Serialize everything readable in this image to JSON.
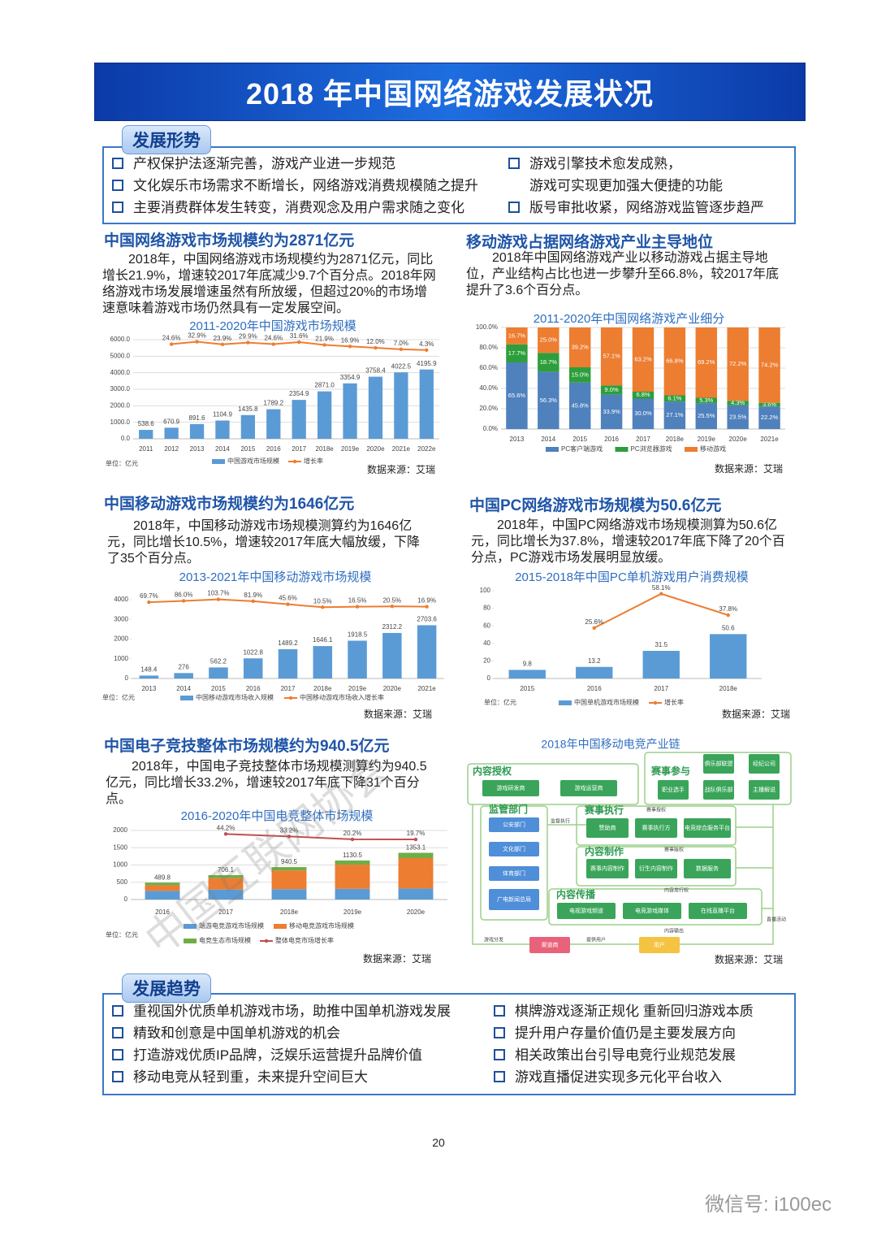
{
  "header": {
    "title": "2018 年中国网络游戏发展状况"
  },
  "situation": {
    "title": "发展形势",
    "left": [
      "产权保护法逐渐完善，游戏产业进一步规范",
      "文化娱乐市场需求不断增长，网络游戏消费规模随之提升",
      "主要消费群体发生转变，消费观念及用户需求随之变化"
    ],
    "right": [
      [
        "游戏引擎技术愈发成熟，",
        "游戏可实现更加强大便捷的功能"
      ],
      [
        "版号审批收紧，网络游戏监管逐步趋严"
      ]
    ]
  },
  "panels": [
    {
      "title": "中国网络游戏市场规模约为2871亿元",
      "text": "2018年，中国网络游戏市场规模约为2871亿元，同比增长21.9%，增速较2017年底减少9.7个百分点。2018年网络游戏市场发展增速虽然有所放缓，但超过20%的市场增速意味着游戏市场仍然具有一定发展空间。"
    },
    {
      "title": "移动游戏占据网络游戏产业主导地位",
      "text": "2018年中国网络游戏产业以移动游戏占据主导地位，产业结构占比也进一步攀升至66.8%，较2017年底提升了3.6个百分点。"
    },
    {
      "title": "中国移动游戏市场规模约为1646亿元",
      "text": "2018年，中国移动游戏市场规模测算约为1646亿元，同比增长10.5%，增速较2017年底大幅放缓，下降了35个百分点。"
    },
    {
      "title": "中国PC网络游戏市场规模为50.6亿元",
      "text": "2018年，中国PC网络游戏市场规模测算为50.6亿元，同比增长为37.8%，增速较2017年底下降了20个百分点，PC游戏市场发展明显放缓。"
    },
    {
      "title": "中国电子竞技整体市场规模约为940.5亿元",
      "text": "2018年，中国电子竞技整体市场规模测算约为940.5亿元，同比增长33.2%，增速较2017年底下降31个百分点。"
    }
  ],
  "chart_data": [
    {
      "type": "bar",
      "title": "2011-2020年中国游戏市场规模",
      "unit_label": "单位：亿元",
      "source": "数据来源：艾瑞",
      "categories": [
        "2011",
        "2012",
        "2013",
        "2014",
        "2015",
        "2016",
        "2017",
        "2018e",
        "2019e",
        "2020e",
        "2021e",
        "2022e"
      ],
      "ylim": [
        0,
        6000
      ],
      "yticks": [
        {
          "value": 0,
          "label": "0.0"
        },
        {
          "value": 1000,
          "label": "1000.0"
        },
        {
          "value": 2000,
          "label": "2000.0"
        },
        {
          "value": 3000,
          "label": "3000.0"
        },
        {
          "value": 4000,
          "label": "4000.0"
        },
        {
          "value": 5000,
          "label": "5000.0"
        },
        {
          "value": 6000,
          "label": "6000.0"
        }
      ],
      "y2lim": [
        -300,
        40
      ],
      "grid": true,
      "series": [
        {
          "name": "中国游戏市场规模",
          "type": "bar",
          "color": "#5b9bd5",
          "values": [
            538.6,
            670.9,
            891.6,
            1104.9,
            1435.8,
            1789.2,
            2354.9,
            2871,
            3354.9,
            3758.4,
            4022.5,
            4195.9
          ],
          "value_labels": [
            "538.6",
            "670.9",
            "891.6",
            "1104.9",
            "1435.8",
            "1789.2",
            "2354.9",
            "2871.0",
            "3354.9",
            "3758.4",
            "4022.5",
            "4195.9"
          ]
        },
        {
          "name": "增长率",
          "type": "line",
          "axis": "y2",
          "color": "#ed7d31",
          "values": [
            null,
            24.6,
            32.9,
            23.9,
            29.9,
            24.6,
            31.6,
            21.9,
            16.9,
            12.0,
            7.0,
            4.3
          ],
          "value_labels": [
            null,
            "24.6%",
            "32.9%",
            "23.9%",
            "29.9%",
            "24.6%",
            "31.6%",
            "21.9%",
            "16.9%",
            "12.0%",
            "7.0%",
            "4.3%"
          ]
        }
      ]
    },
    {
      "type": "bar",
      "title": "2011-2020年中国网络游戏产业细分",
      "source": "数据来源：艾瑞",
      "stacked": true,
      "categories": [
        "2013",
        "2014",
        "2015",
        "2016",
        "2017",
        "2018e",
        "2019e",
        "2020e",
        "2021e"
      ],
      "ylim": [
        0,
        100
      ],
      "yticks": [
        {
          "value": 0,
          "label": "0.0%"
        },
        {
          "value": 20,
          "label": "20.0%"
        },
        {
          "value": 40,
          "label": "40.0%"
        },
        {
          "value": 60,
          "label": "60.0%"
        },
        {
          "value": 80,
          "label": "80.0%"
        },
        {
          "value": 100,
          "label": "100.0%"
        }
      ],
      "grid": true,
      "series": [
        {
          "name": "PC客户端游戏",
          "type": "bar",
          "color": "#4f81bd",
          "values": [
            65.6,
            56.3,
            45.8,
            33.9,
            30.0,
            27.1,
            25.5,
            23.5,
            22.2
          ],
          "value_labels": [
            "65.6%",
            "56.3%",
            "45.8%",
            "33.9%",
            "30.0%",
            "27.1%",
            "25.5%",
            "23.5%",
            "22.2%"
          ]
        },
        {
          "name": "PC浏览器游戏",
          "type": "bar",
          "color": "#2e9e3c",
          "values": [
            17.7,
            18.7,
            15.0,
            9.0,
            6.8,
            6.1,
            5.3,
            4.3,
            3.6
          ],
          "value_labels": [
            "17.7%",
            "18.7%",
            "15.0%",
            "9.0%",
            "6.8%",
            "6.1%",
            "5.3%",
            "4.3%",
            "3.6%"
          ]
        },
        {
          "name": "移动游戏",
          "type": "bar",
          "color": "#ed7d31",
          "values": [
            16.7,
            25.0,
            39.2,
            57.1,
            63.2,
            66.8,
            69.2,
            72.2,
            74.2
          ],
          "value_labels": [
            "16.7%",
            "25.0%",
            "39.2%",
            "57.1%",
            "63.2%",
            "66.8%",
            "69.2%",
            "72.2%",
            "74.2%"
          ]
        }
      ]
    },
    {
      "type": "bar",
      "title": "2013-2021年中国移动游戏市场规模",
      "unit_label": "单位：亿元",
      "source": "数据来源：艾瑞",
      "categories": [
        "2013",
        "2014",
        "2015",
        "2016",
        "2017",
        "2018e",
        "2019e",
        "2020e",
        "2021e"
      ],
      "ylim": [
        0,
        4000
      ],
      "yticks": [
        0,
        1000,
        2000,
        3000,
        4000
      ],
      "y2lim": [
        -840,
        100
      ],
      "grid": false,
      "series": [
        {
          "name": "中国移动游戏市场收入规模",
          "type": "bar",
          "color": "#5b9bd5",
          "values": [
            148.4,
            276,
            562.2,
            1022.8,
            1489.2,
            1646.1,
            1918.5,
            2312.2,
            2703.6
          ]
        },
        {
          "name": "中国移动游戏市场收入增长率",
          "type": "line",
          "axis": "y2",
          "color": "#ed7d31",
          "values": [
            69.7,
            86.0,
            103.7,
            81.9,
            45.6,
            10.5,
            16.5,
            20.5,
            16.9
          ],
          "value_labels": [
            "69.7%",
            "86.0%",
            "103.7%",
            "81.9%",
            "45.6%",
            "10.5%",
            "16.5%",
            "20.5%",
            "16.9%"
          ]
        }
      ]
    },
    {
      "type": "bar",
      "title": "2015-2018年中国PC单机游戏用户消费规模",
      "unit_label": "单位：亿元",
      "source": "数据来源：艾瑞",
      "categories": [
        "2015",
        "2016",
        "2017",
        "2018e"
      ],
      "ylim": [
        0,
        100
      ],
      "yticks": [
        0,
        20,
        40,
        60,
        80,
        100
      ],
      "y2lim": [
        -22.5,
        61
      ],
      "grid": false,
      "series": [
        {
          "name": "中国单机游戏市场规模",
          "type": "bar",
          "color": "#5b9bd5",
          "values": [
            9.8,
            13.2,
            31.5,
            50.6
          ]
        },
        {
          "name": "增长率",
          "type": "line",
          "axis": "y2",
          "color": "#ed7d31",
          "values": [
            null,
            25.6,
            58.1,
            37.8
          ],
          "value_labels": [
            null,
            "25.6%",
            "58.1%",
            "37.8%"
          ]
        }
      ]
    },
    {
      "type": "bar",
      "title": "2016-2020年中国电竞整体市场规模",
      "unit_label": "单位：亿元",
      "source": "数据来源：艾瑞",
      "stacked": true,
      "categories": [
        "2016",
        "2017",
        "2018e",
        "2019e",
        "2020e"
      ],
      "ylim": [
        0,
        2000
      ],
      "yticks": [
        0,
        500,
        1000,
        1500,
        2000
      ],
      "y2lim": [
        -250,
        60
      ],
      "grid": true,
      "totals": {
        "values": [
          489.8,
          706.1,
          940.5,
          1130.5,
          1353.1
        ]
      },
      "series": [
        {
          "name": "端游电竞游戏市场规模",
          "type": "bar",
          "color": "#5b9bd5",
          "values": [
            250,
            290,
            300,
            310,
            320
          ]
        },
        {
          "name": "移动电竞游戏市场规模",
          "type": "bar",
          "color": "#ed7d31",
          "values": [
            160,
            330,
            540,
            700,
            880
          ]
        },
        {
          "name": "电竞生态市场规模",
          "type": "bar",
          "color": "#70ad47",
          "values": [
            80,
            86,
            100,
            120,
            153
          ]
        },
        {
          "name": "整体电竞市场增长率",
          "type": "line",
          "axis": "y2",
          "color": "#c0504d",
          "values": [
            null,
            44.2,
            33.2,
            20.2,
            19.7
          ],
          "value_labels": [
            null,
            "44.2%",
            "33.2%",
            "20.2%",
            "19.7%"
          ]
        }
      ]
    }
  ],
  "diagram": {
    "title": "2018年中国移动电竞产业链",
    "source": "数据来源：艾瑞",
    "groups": [
      "内容授权",
      "赛事参与",
      "监管部门",
      "赛事执行",
      "内容制作",
      "内容传播"
    ],
    "nodes": [
      "游戏研发商",
      "游戏运营商",
      "俱乐部联盟",
      "经纪公司",
      "职业选手",
      "战队俱乐部",
      "主播解说",
      "公安部门",
      "文化部门",
      "体育部门",
      "广电新闻总局",
      "赞助商",
      "赛事执行方",
      "电竞综合服务平台",
      "赛事内容制作",
      "衍生内容制作",
      "数据服务",
      "电视游戏频道",
      "电竞游戏媒体",
      "在线直播平台",
      "渠道商",
      "用户"
    ],
    "edges": [
      "赛事授权",
      "监督执行",
      "赛事版权",
      "内容发行权",
      "内容输出",
      "直播活动",
      "游戏分发",
      "提供用户"
    ]
  },
  "trends": {
    "title": "发展趋势",
    "left": [
      "重视国外优质单机游戏市场，助推中国单机游戏发展",
      "精致和创意是中国单机游戏的机会",
      "打造游戏优质IP品牌，泛娱乐运营提升品牌价值",
      "移动电竞从轻到重，未来提升空间巨大"
    ],
    "right": [
      "棋牌游戏逐渐正规化 重新回归游戏本质",
      "提升用户存量价值仍是主要发展方向",
      "相关政策出台引导电竞行业规范发展",
      "游戏直播促进实现多元化平台收入"
    ]
  },
  "page_number": "20",
  "watermark": "中国互联网协会",
  "footer": "微信号: i100ec"
}
